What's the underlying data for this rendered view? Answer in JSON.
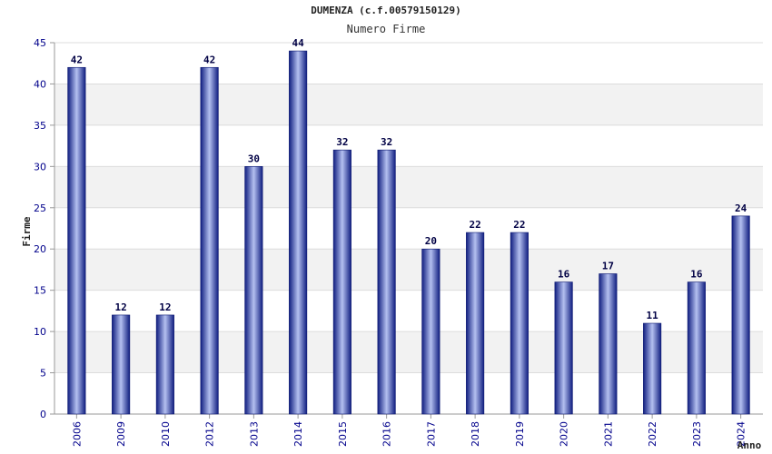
{
  "chart_data": {
    "type": "bar",
    "title": "DUMENZA (c.f.00579150129)",
    "subtitle": "Numero Firme",
    "xlabel": "Anno",
    "ylabel": "Firme",
    "categories": [
      "2006",
      "2009",
      "2010",
      "2012",
      "2013",
      "2014",
      "2015",
      "2016",
      "2017",
      "2018",
      "2019",
      "2020",
      "2021",
      "2022",
      "2023",
      "2024"
    ],
    "values": [
      42,
      12,
      12,
      42,
      30,
      44,
      32,
      32,
      20,
      22,
      22,
      16,
      17,
      11,
      16,
      24
    ],
    "ylim": [
      0,
      45
    ],
    "yticks": [
      0,
      5,
      10,
      15,
      20,
      25,
      30,
      35,
      40,
      45
    ],
    "grid": true,
    "colors": {
      "bar": "#1a2a8c",
      "bar_highlight": "#aab8ee",
      "band": "#f2f2f2",
      "tick_text": "#00008b"
    }
  }
}
